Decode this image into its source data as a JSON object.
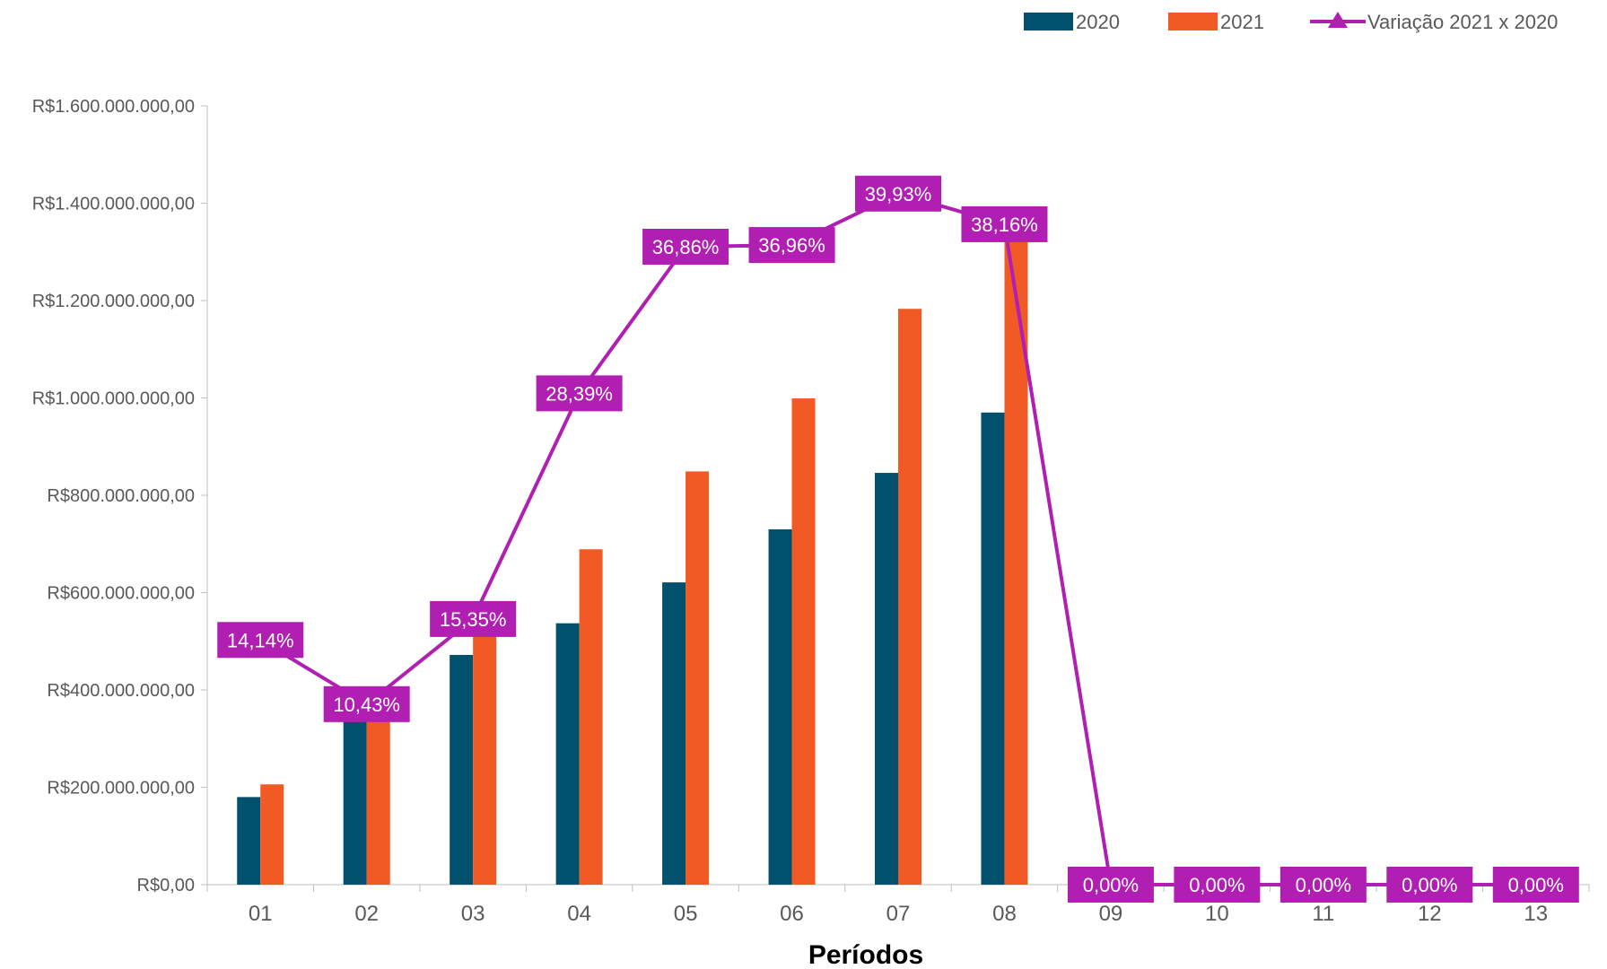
{
  "chart_data": {
    "type": "bar",
    "xlabel": "Períodos",
    "ylabel": "",
    "ylim": [
      0,
      1600000000
    ],
    "yticks": [
      0,
      200000000,
      400000000,
      600000000,
      800000000,
      1000000000,
      1200000000,
      1400000000,
      1600000000
    ],
    "ytick_labels": [
      "R$0,00",
      "R$200.000.000,00",
      "R$400.000.000,00",
      "R$600.000.000,00",
      "R$800.000.000,00",
      "R$1.000.000.000,00",
      "R$1.200.000.000,00",
      "R$1.400.000.000,00",
      "R$1.600.000.000,00"
    ],
    "categories": [
      "01",
      "02",
      "03",
      "04",
      "05",
      "06",
      "07",
      "08",
      "09",
      "10",
      "11",
      "12",
      "13"
    ],
    "series": [
      {
        "name": "2020",
        "kind": "bar",
        "color": "#00506e",
        "values": [
          180000000,
          345000000,
          472000000,
          537000000,
          621000000,
          730000000,
          846000000,
          970000000,
          0,
          0,
          0,
          0,
          0
        ]
      },
      {
        "name": "2021",
        "kind": "bar",
        "color": "#f15a24",
        "values": [
          206000000,
          382000000,
          545000000,
          689000000,
          849000000,
          999000000,
          1183000000,
          1340000000,
          0,
          0,
          0,
          0,
          0
        ]
      },
      {
        "name": "Variação 2021 x 2020",
        "kind": "line",
        "color": "#b01fb2",
        "marker": "triangle",
        "secondary_axis": true,
        "values_percent": [
          14.14,
          10.43,
          15.35,
          28.39,
          36.86,
          36.96,
          39.93,
          38.16,
          0,
          0,
          0,
          0,
          0
        ],
        "data_labels": [
          "14,14%",
          "10,43%",
          "15,35%",
          "28,39%",
          "36,86%",
          "36,96%",
          "39,93%",
          "38,16%",
          "0,00%",
          "0,00%",
          "0,00%",
          "0,00%",
          "0,00%"
        ]
      }
    ],
    "legend_position": "top-right",
    "grid": false
  }
}
